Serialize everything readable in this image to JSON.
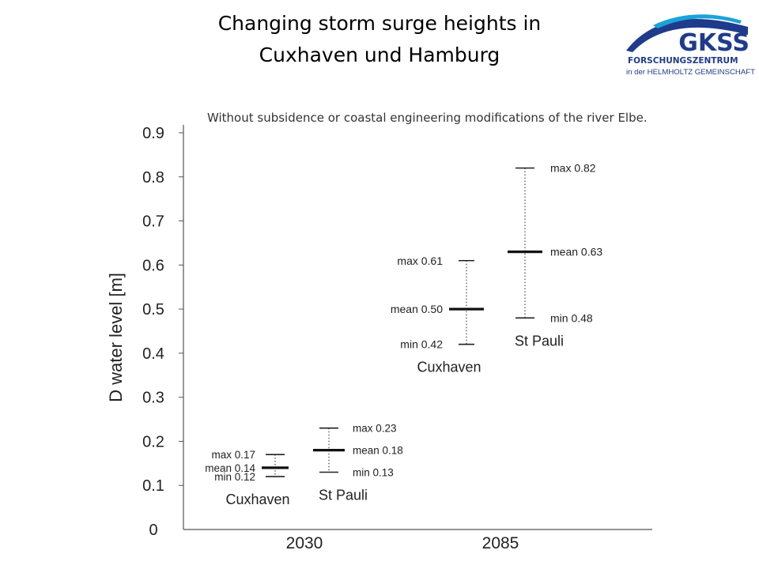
{
  "header": {
    "title_line1": "Changing storm surge heights  in",
    "title_line2": "Cuxhaven und Hamburg"
  },
  "logo": {
    "word": "GKSS",
    "line1": "FORSCHUNGSZENTRUM",
    "line2": "in der HELMHOLTZ GEMEINSCHAFT",
    "colors": {
      "blue": "#1f3b8c",
      "cyan": "#1aa3d9"
    }
  },
  "subtitle": "Without subsidence or coastal engineering modifications of the river Elbe.",
  "chart_data": {
    "type": "range",
    "ylabel": "D water level  [m]",
    "ylim": [
      0,
      0.9
    ],
    "y_ticks": [
      "0",
      "0.1",
      "0.2",
      "0.3",
      "0.4",
      "0.5",
      "0.6",
      "0.7",
      "0.8",
      "0.9"
    ],
    "groups": [
      {
        "label": "2030",
        "stations": [
          {
            "name": "Cuxhaven",
            "min": 0.12,
            "mean": 0.14,
            "max": 0.17,
            "min_label": "min 0.12",
            "mean_label": "mean 0.14",
            "max_label": "max 0.17"
          },
          {
            "name": "St Pauli",
            "min": 0.13,
            "mean": 0.18,
            "max": 0.23,
            "min_label": "min 0.13",
            "mean_label": "mean 0.18",
            "max_label": "max 0.23"
          }
        ]
      },
      {
        "label": "2085",
        "stations": [
          {
            "name": "Cuxhaven",
            "min": 0.42,
            "mean": 0.5,
            "max": 0.61,
            "min_label": "min 0.42",
            "mean_label": "mean 0.50",
            "max_label": "max 0.61"
          },
          {
            "name": "St Pauli",
            "min": 0.48,
            "mean": 0.63,
            "max": 0.82,
            "min_label": "min 0.48",
            "mean_label": "mean 0.63",
            "max_label": "max 0.82"
          }
        ]
      }
    ]
  }
}
